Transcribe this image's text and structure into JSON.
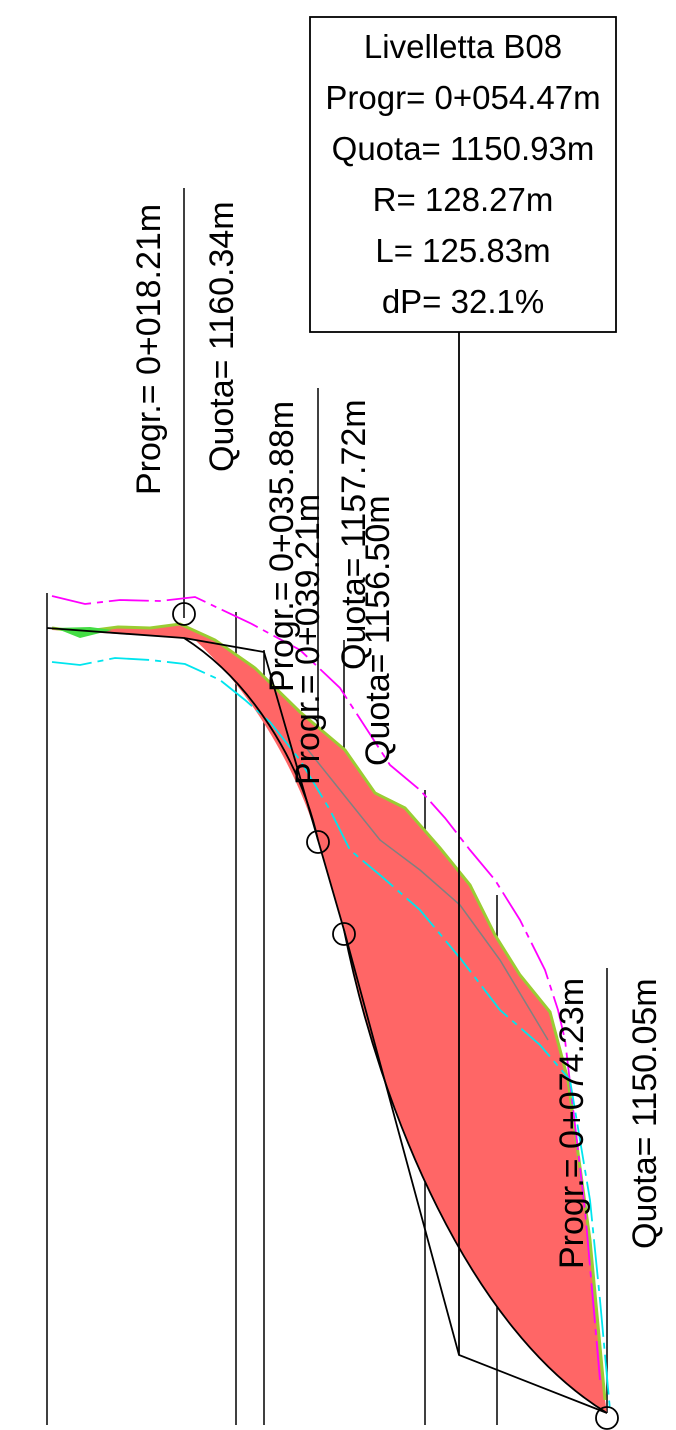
{
  "info_box": {
    "title": "Livelletta B08",
    "progr": "Progr= 0+054.47m",
    "quota": "Quota= 1150.93m",
    "radius": "R= 128.27m",
    "length": "L= 125.83m",
    "slope": "dP= 32.1%"
  },
  "stations": [
    {
      "progr": "Progr.= 0+018.21m",
      "quota": "Quota= 1160.34m"
    },
    {
      "progr": "Progr.= 0+035.88m",
      "quota": "Quota= 1157.72m"
    },
    {
      "progr": "Progr.= 0+039.21m",
      "quota": "Quota= 1156.50m"
    },
    {
      "progr": "Progr.= 0+074.23m",
      "quota": "Quota= 1150.05m"
    }
  ],
  "colors": {
    "cut_fill": "#ff6666",
    "terrain": "#9acd32",
    "upper_offset": "#ff00ff",
    "lower_offset": "#00e5ee",
    "grid": "#000000",
    "axis_guide": "#808080"
  }
}
